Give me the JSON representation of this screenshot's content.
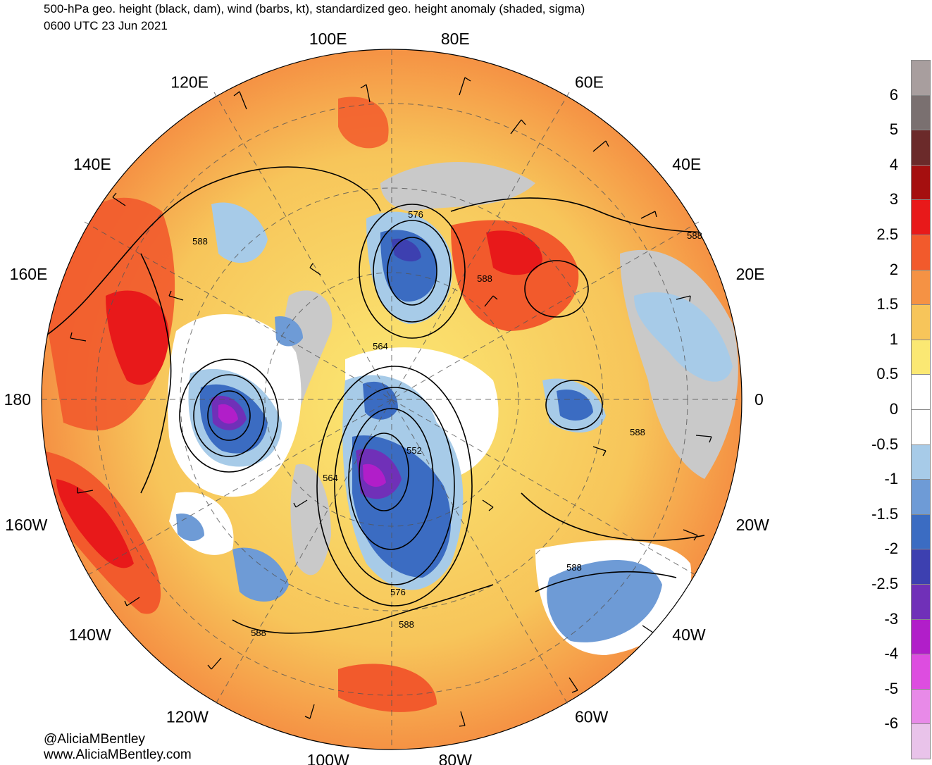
{
  "title": {
    "line1": "500-hPa geo. height (black, dam), wind (barbs, kt), standardized geo. height anomaly (shaded, sigma)",
    "line2": "0600 UTC 23 Jun 2021"
  },
  "longitude_labels": [
    {
      "text": "100E",
      "lon_deg": 100
    },
    {
      "text": "80E",
      "lon_deg": 80
    },
    {
      "text": "120E",
      "lon_deg": 120
    },
    {
      "text": "60E",
      "lon_deg": 60
    },
    {
      "text": "140E",
      "lon_deg": 140
    },
    {
      "text": "40E",
      "lon_deg": 40
    },
    {
      "text": "160E",
      "lon_deg": 160
    },
    {
      "text": "20E",
      "lon_deg": 20
    },
    {
      "text": "180",
      "lon_deg": 180
    },
    {
      "text": "0",
      "lon_deg": 0
    },
    {
      "text": "160W",
      "lon_deg": -160
    },
    {
      "text": "20W",
      "lon_deg": -20
    },
    {
      "text": "140W",
      "lon_deg": -140
    },
    {
      "text": "40W",
      "lon_deg": -40
    },
    {
      "text": "120W",
      "lon_deg": -120
    },
    {
      "text": "60W",
      "lon_deg": -60
    },
    {
      "text": "100W",
      "lon_deg": -100
    },
    {
      "text": "80W",
      "lon_deg": -80
    }
  ],
  "contour_labels": [
    "576",
    "588",
    "588",
    "588",
    "564",
    "552",
    "564",
    "588",
    "588",
    "576",
    "588",
    "588"
  ],
  "colorbar": {
    "labels": [
      "6",
      "5",
      "4",
      "3",
      "2.5",
      "2",
      "1.5",
      "1",
      "0.5",
      "0",
      "-0.5",
      "-1",
      "-1.5",
      "-2",
      "-2.5",
      "-3",
      "-4",
      "-5",
      "-6"
    ],
    "colors": [
      "#a89e9e",
      "#7a7070",
      "#6b2a2a",
      "#a50f0f",
      "#e8191a",
      "#f25a2c",
      "#f59244",
      "#f7c55a",
      "#fbe873",
      "#ffffff",
      "#ffffff",
      "#a7cbe8",
      "#6e9bd6",
      "#3b6cc2",
      "#3d40b0",
      "#7030b8",
      "#b11ec9",
      "#dd4de0",
      "#e88ae8",
      "#e9c3ea"
    ]
  },
  "credits": {
    "twitter": "@AliciaMBentley",
    "website": "www.AliciaMBentley.com"
  }
}
